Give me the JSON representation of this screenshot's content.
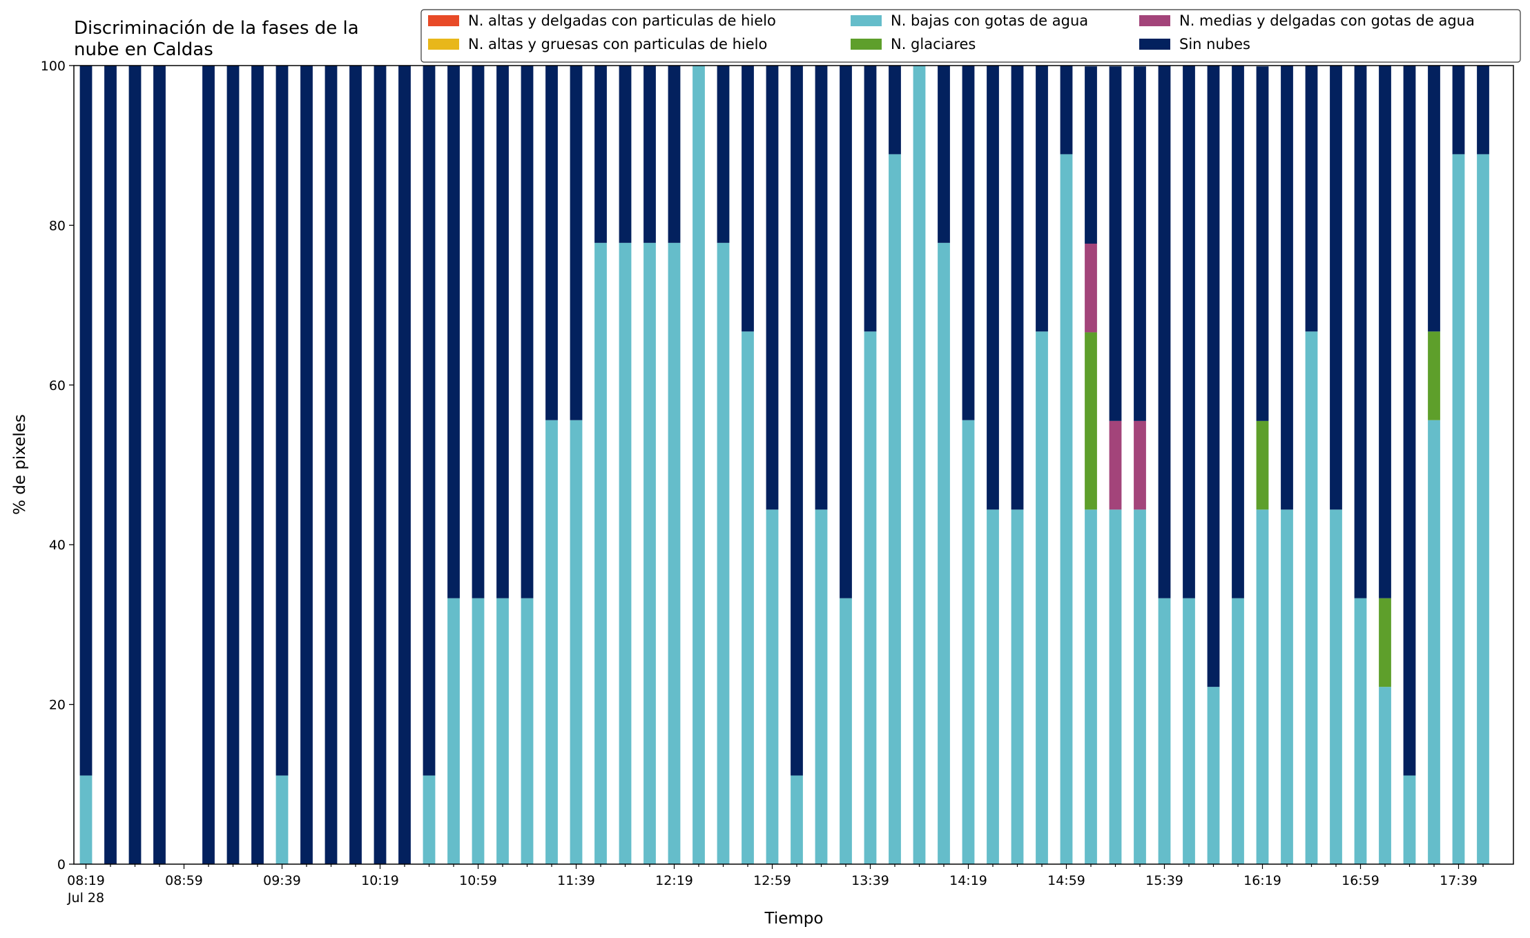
{
  "chart_data": {
    "type": "bar",
    "stacked": true,
    "title": "Discriminación de la fases de la\nnube en Caldas",
    "xlabel": "Tiempo",
    "ylabel": "% de pixeles",
    "ylim": [
      0,
      100
    ],
    "yticks": [
      0,
      20,
      40,
      60,
      80,
      100
    ],
    "grid": false,
    "legend_position": "top-right",
    "legend_columns": 3,
    "x_date_label": "Jul 28",
    "x_tick_labels": [
      "08:19",
      "08:59",
      "09:39",
      "10:19",
      "10:59",
      "11:39",
      "12:19",
      "12:59",
      "13:39",
      "14:19",
      "14:59",
      "15:39",
      "16:19",
      "16:59",
      "17:39"
    ],
    "categories": [
      "08:19",
      "08:29",
      "08:39",
      "08:49",
      "08:59",
      "09:09",
      "09:19",
      "09:29",
      "09:39",
      "09:49",
      "09:59",
      "10:09",
      "10:19",
      "10:29",
      "10:39",
      "10:49",
      "10:59",
      "11:09",
      "11:19",
      "11:29",
      "11:39",
      "11:49",
      "11:59",
      "12:09",
      "12:19",
      "12:29",
      "12:39",
      "12:49",
      "12:59",
      "13:09",
      "13:19",
      "13:29",
      "13:39",
      "13:49",
      "13:59",
      "14:09",
      "14:19",
      "14:29",
      "14:39",
      "14:49",
      "14:59",
      "15:09",
      "15:19",
      "15:29",
      "15:39",
      "15:49",
      "15:59",
      "16:09",
      "16:19",
      "16:29",
      "16:39",
      "16:49",
      "16:59",
      "17:09",
      "17:19",
      "17:29",
      "17:39",
      "17:49"
    ],
    "series": [
      {
        "name": "N. altas y delgadas con particulas de hielo",
        "color": "#e84a27",
        "values": [
          0,
          0,
          0,
          0,
          0,
          0,
          0,
          0,
          0,
          0,
          0,
          0,
          0,
          0,
          0,
          0,
          0,
          0,
          0,
          0,
          0,
          0,
          0,
          0,
          0,
          0,
          0,
          0,
          0,
          0,
          0,
          0,
          0,
          0,
          0,
          0,
          0,
          0,
          0,
          0,
          0,
          0,
          0,
          0,
          0,
          0,
          0,
          0,
          0,
          0,
          0,
          0,
          0,
          0,
          0,
          0,
          0,
          0
        ]
      },
      {
        "name": "N. altas y gruesas con particulas de hielo",
        "color": "#e8b71a",
        "values": [
          0,
          0,
          0,
          0,
          0,
          0,
          0,
          0,
          0,
          0,
          0,
          0,
          0,
          0,
          0,
          0,
          0,
          0,
          0,
          0,
          0,
          0,
          0,
          0,
          0,
          0,
          0,
          0,
          0,
          0,
          0,
          0,
          0,
          0,
          0,
          0,
          0,
          0,
          0,
          0,
          0,
          0,
          0,
          0,
          0,
          0,
          0,
          0,
          0,
          0,
          0,
          0,
          0,
          0,
          0,
          0,
          0,
          0
        ]
      },
      {
        "name": "N. bajas con gotas de agua",
        "color": "#65bdca",
        "values": [
          11.1,
          0,
          0,
          0,
          0,
          0,
          0,
          0,
          11.1,
          0,
          0,
          0,
          0,
          0,
          11.1,
          33.3,
          33.3,
          33.3,
          33.3,
          55.6,
          55.6,
          77.8,
          77.8,
          77.8,
          77.8,
          100,
          77.8,
          66.7,
          44.4,
          11.1,
          44.4,
          33.3,
          66.7,
          88.9,
          100,
          77.8,
          55.6,
          44.4,
          44.4,
          66.7,
          88.9,
          44.4,
          44.4,
          44.4,
          33.3,
          33.3,
          22.2,
          33.3,
          44.4,
          44.4,
          66.7,
          44.4,
          33.3,
          22.2,
          11.1,
          55.6,
          88.9,
          88.9
        ]
      },
      {
        "name": "N. glaciares",
        "color": "#5e9f2b",
        "values": [
          0,
          0,
          0,
          0,
          0,
          0,
          0,
          0,
          0,
          0,
          0,
          0,
          0,
          0,
          0,
          0,
          0,
          0,
          0,
          0,
          0,
          0,
          0,
          0,
          0,
          0,
          0,
          0,
          0,
          0,
          0,
          0,
          0,
          0,
          0,
          0,
          0,
          0,
          0,
          0,
          0,
          22.2,
          0,
          0,
          0,
          0,
          0,
          0,
          11.1,
          0,
          0,
          0,
          0,
          11.1,
          0,
          11.1,
          0,
          0
        ]
      },
      {
        "name": "N. medias y delgadas con gotas de agua",
        "color": "#a3447a",
        "values": [
          0,
          0,
          0,
          0,
          0,
          0,
          0,
          0,
          0,
          0,
          0,
          0,
          0,
          0,
          0,
          0,
          0,
          0,
          0,
          0,
          0,
          0,
          0,
          0,
          0,
          0,
          0,
          0,
          0,
          0,
          0,
          0,
          0,
          0,
          0,
          0,
          0,
          0,
          0,
          0,
          0,
          11.1,
          11.1,
          11.1,
          0,
          0,
          0,
          0,
          0,
          0,
          0,
          0,
          0,
          0,
          0,
          0,
          0,
          0
        ]
      },
      {
        "name": "Sin nubes",
        "color": "#03215e",
        "values": [
          88.9,
          100,
          100,
          100,
          0,
          100,
          100,
          100,
          88.9,
          100,
          100,
          100,
          100,
          100,
          88.9,
          66.7,
          66.7,
          66.7,
          66.7,
          44.4,
          44.4,
          22.2,
          22.2,
          22.2,
          22.2,
          0,
          22.2,
          33.3,
          55.6,
          88.9,
          55.6,
          66.7,
          33.3,
          11.1,
          0,
          22.2,
          44.4,
          55.6,
          55.6,
          33.3,
          11.1,
          22.2,
          44.4,
          44.4,
          66.7,
          66.7,
          77.8,
          66.7,
          44.4,
          55.6,
          33.3,
          55.6,
          66.7,
          66.7,
          88.9,
          33.3,
          11.1,
          11.1
        ]
      }
    ]
  }
}
